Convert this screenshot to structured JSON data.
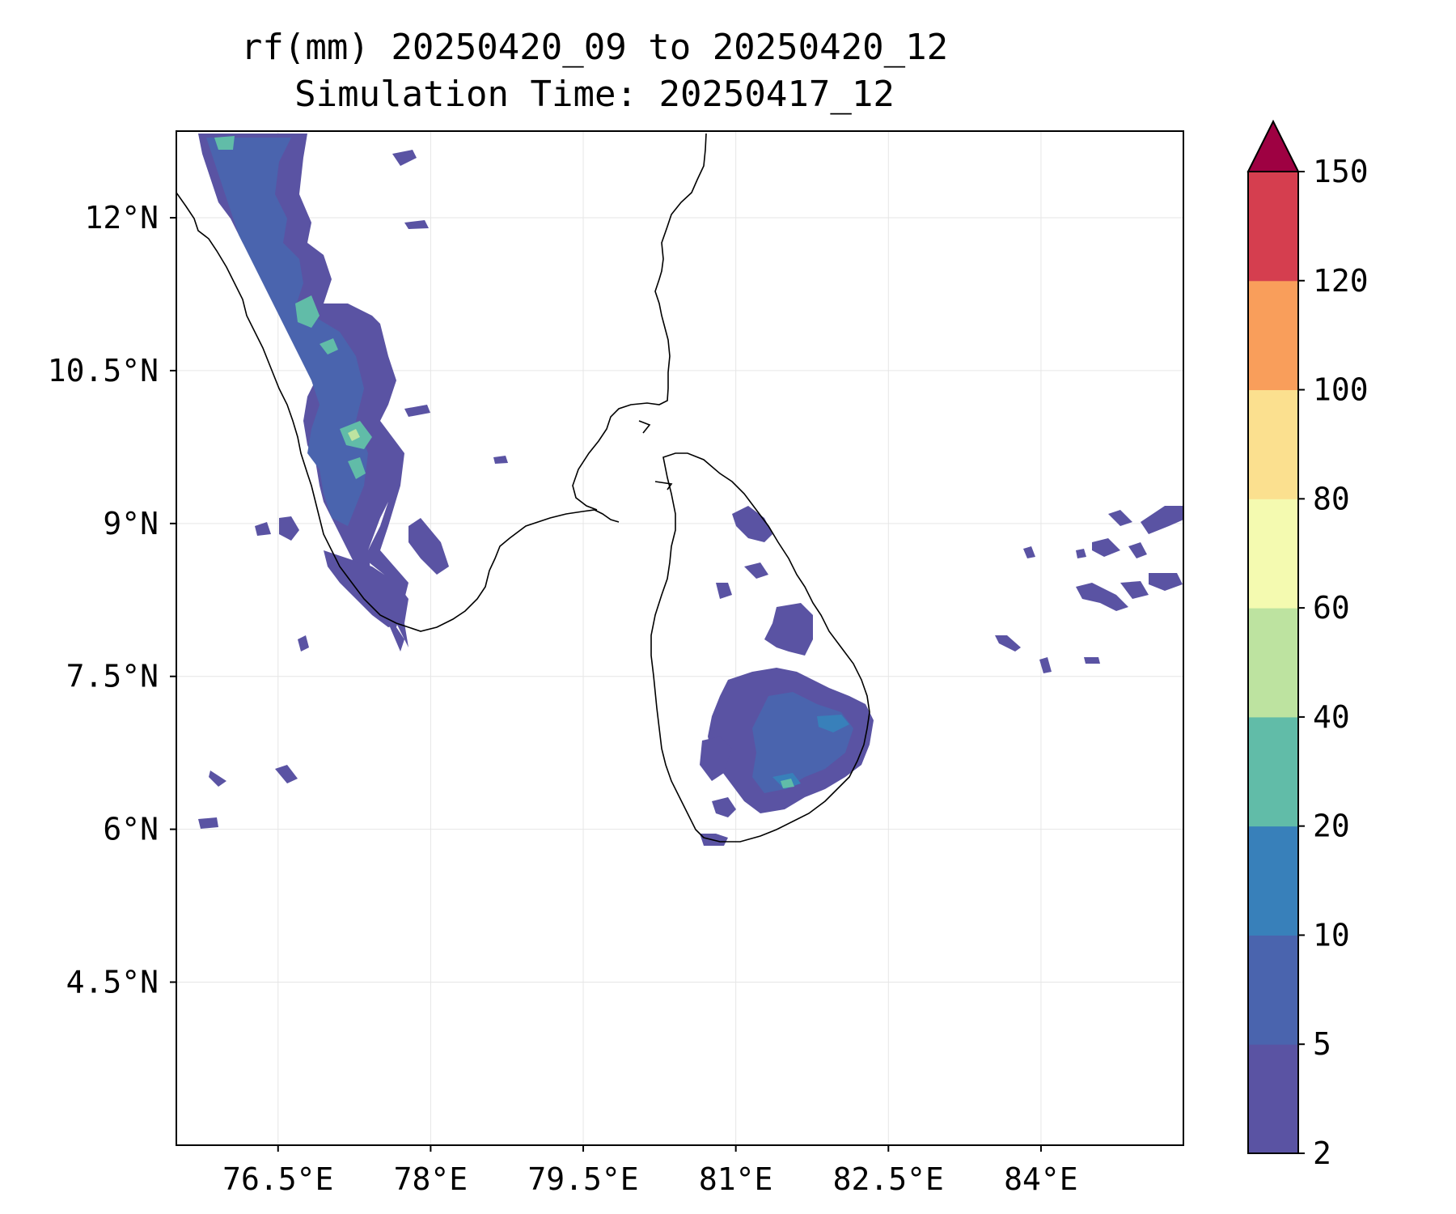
{
  "title": {
    "line1": "rf(mm) 20250420_09 to 20250420_12",
    "line2": "Simulation Time: 20250417_12"
  },
  "map": {
    "lon_range": [
      75.5,
      85.4
    ],
    "lat_range": [
      2.9,
      12.85
    ],
    "lon_ticks": [
      {
        "value": 76.5,
        "label": "76.5°E"
      },
      {
        "value": 78,
        "label": "78°E"
      },
      {
        "value": 79.5,
        "label": "79.5°E"
      },
      {
        "value": 81,
        "label": "81°E"
      },
      {
        "value": 82.5,
        "label": "82.5°E"
      },
      {
        "value": 84,
        "label": "84°E"
      }
    ],
    "lat_ticks": [
      {
        "value": 12,
        "label": "12°N"
      },
      {
        "value": 10.5,
        "label": "10.5°N"
      },
      {
        "value": 9,
        "label": "9°N"
      },
      {
        "value": 7.5,
        "label": "7.5°N"
      },
      {
        "value": 6,
        "label": "6°N"
      },
      {
        "value": 4.5,
        "label": "4.5°N"
      }
    ],
    "gridlines": true
  },
  "colorbar": {
    "levels": [
      2,
      5,
      10,
      20,
      40,
      60,
      80,
      100,
      120,
      150
    ],
    "colors": [
      "#5a53a3",
      "#4a64ae",
      "#3880ba",
      "#61bca8",
      "#bde3a0",
      "#f4fab0",
      "#fbe08f",
      "#f99e5b",
      "#d53e4f"
    ],
    "extend_max_color": "#9e0142",
    "tick_labels": [
      "2",
      "5",
      "10",
      "20",
      "40",
      "60",
      "80",
      "100",
      "120",
      "150"
    ]
  }
}
